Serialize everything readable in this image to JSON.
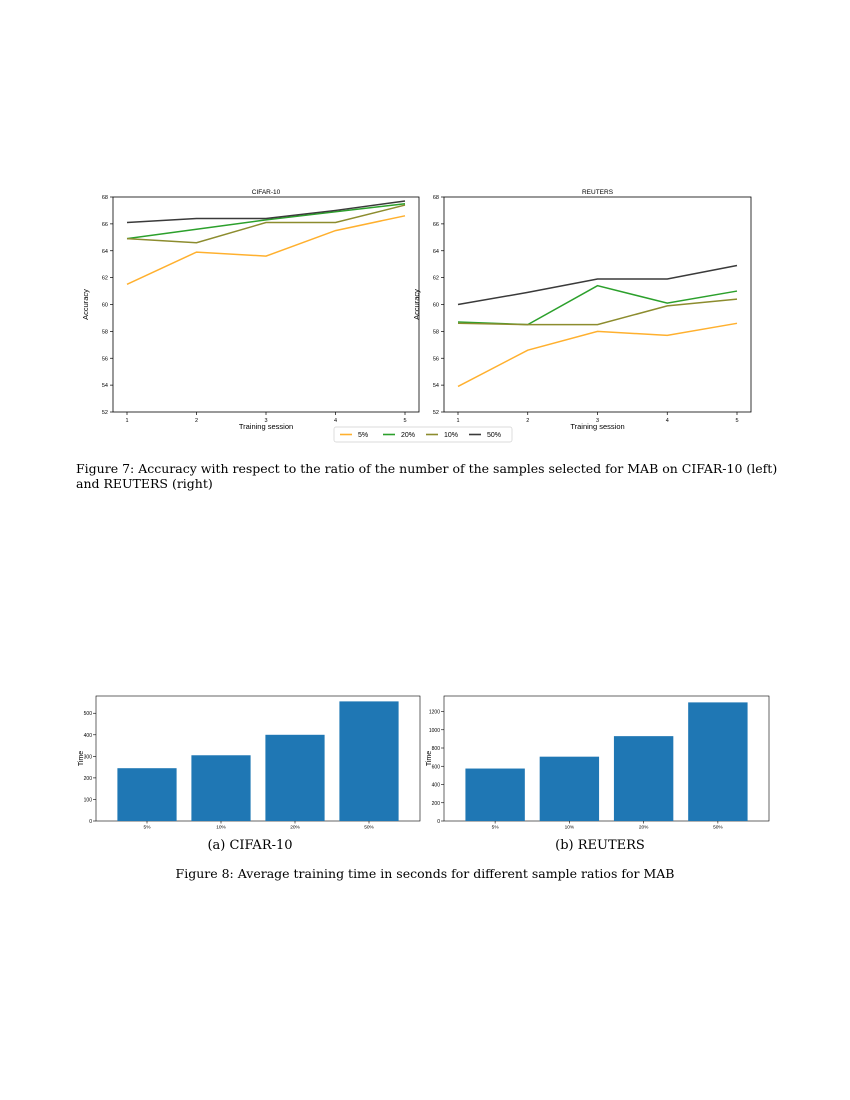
{
  "figure7": {
    "caption": "Figure 7: Accuracy with respect to the ratio of the number of the samples selected for MAB on CIFAR-10 (left) and REUTERS (right)"
  },
  "figure8": {
    "caption": "Figure 8: Average training time in seconds for different sample ratios for MAB",
    "subcaption_a": "(a) CIFAR-10",
    "subcaption_b": "(b) REUTERS"
  },
  "legend": [
    {
      "name": "5%",
      "color": "#ffb02e"
    },
    {
      "name": "20%",
      "color": "#2ca02c"
    },
    {
      "name": "10%",
      "color": "#8c8c2e"
    },
    {
      "name": "50%",
      "color": "#3a3a3a"
    }
  ],
  "chart_data": [
    {
      "type": "line",
      "title": "CIFAR-10",
      "xlabel": "Training session",
      "ylabel": "Accuracy",
      "x": [
        1,
        2,
        3,
        4,
        5
      ],
      "ylim": [
        52,
        68
      ],
      "yticks": [
        52,
        54,
        56,
        58,
        60,
        62,
        64,
        66,
        68
      ],
      "grid": false,
      "legend_position": "bottom-center",
      "series": [
        {
          "name": "5%",
          "color": "#ffb02e",
          "values": [
            61.5,
            63.9,
            63.6,
            65.5,
            66.6
          ]
        },
        {
          "name": "20%",
          "color": "#2ca02c",
          "values": [
            64.9,
            65.6,
            66.3,
            66.9,
            67.5
          ]
        },
        {
          "name": "10%",
          "color": "#8c8c2e",
          "values": [
            64.9,
            64.6,
            66.1,
            66.1,
            67.4
          ]
        },
        {
          "name": "50%",
          "color": "#3a3a3a",
          "values": [
            66.1,
            66.4,
            66.4,
            67.0,
            67.7
          ]
        }
      ]
    },
    {
      "type": "line",
      "title": "REUTERS",
      "xlabel": "Training session",
      "ylabel": "Accuracy",
      "x": [
        1,
        2,
        3,
        4,
        5
      ],
      "ylim": [
        52,
        68
      ],
      "yticks": [
        52,
        54,
        56,
        58,
        60,
        62,
        64,
        66,
        68
      ],
      "grid": false,
      "legend_position": "bottom-center",
      "series": [
        {
          "name": "5%",
          "color": "#ffb02e",
          "values": [
            53.9,
            56.6,
            58.0,
            57.7,
            58.6
          ]
        },
        {
          "name": "20%",
          "color": "#2ca02c",
          "values": [
            58.7,
            58.5,
            61.4,
            60.1,
            61.0
          ]
        },
        {
          "name": "10%",
          "color": "#8c8c2e",
          "values": [
            58.6,
            58.5,
            58.5,
            59.9,
            60.4
          ]
        },
        {
          "name": "50%",
          "color": "#3a3a3a",
          "values": [
            60.0,
            60.9,
            61.9,
            61.9,
            62.9
          ]
        }
      ]
    },
    {
      "type": "bar",
      "title": "",
      "xlabel": "",
      "ylabel": "Time",
      "categories": [
        "5%",
        "10%",
        "20%",
        "50%"
      ],
      "values": [
        245,
        305,
        400,
        555
      ],
      "ylim": [
        0,
        580
      ],
      "yticks": [
        0,
        100,
        200,
        300,
        400,
        500
      ],
      "color": "#1f77b4",
      "grid": false
    },
    {
      "type": "bar",
      "title": "",
      "xlabel": "",
      "ylabel": "Time",
      "categories": [
        "5%",
        "10%",
        "20%",
        "50%"
      ],
      "values": [
        575,
        705,
        930,
        1300
      ],
      "ylim": [
        0,
        1370
      ],
      "yticks": [
        0,
        200,
        400,
        600,
        800,
        1000,
        1200
      ],
      "color": "#1f77b4",
      "grid": false
    }
  ]
}
